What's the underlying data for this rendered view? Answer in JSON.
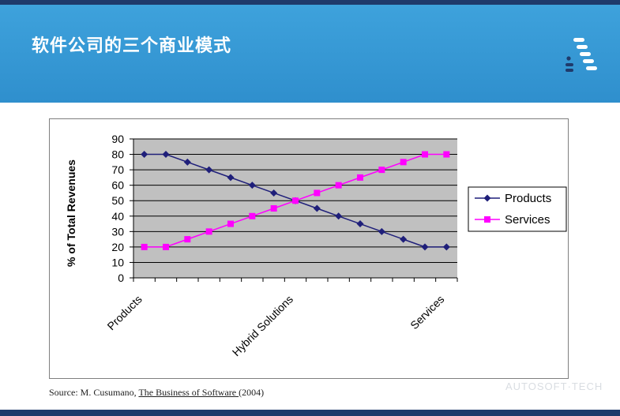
{
  "slide": {
    "title": "软件公司的三个商业模式"
  },
  "source": {
    "prefix": "Source: M. Cusumano, ",
    "book": "The Business of Software ",
    "year": "(2004)"
  },
  "watermark": {
    "text": "AUTOSOFT·TECH"
  },
  "chart_data": {
    "type": "line",
    "ylabel": "% of Total Revenues",
    "xlabel": "",
    "ylim": [
      0,
      90
    ],
    "yticks": [
      0,
      10,
      20,
      30,
      40,
      50,
      60,
      70,
      80,
      90
    ],
    "x_tick_labels": [
      {
        "index": 0,
        "label": "Products"
      },
      {
        "index": 7,
        "label": "Hybrid Solutions"
      },
      {
        "index": 14,
        "label": "Services"
      }
    ],
    "grid": true,
    "legend": "right",
    "series": [
      {
        "name": "Products",
        "color": "#1f1f7a",
        "marker": "diamond",
        "values": [
          80,
          80,
          75,
          70,
          65,
          60,
          55,
          50,
          45,
          40,
          35,
          30,
          25,
          20,
          20
        ]
      },
      {
        "name": "Services",
        "color": "#ff00ff",
        "marker": "square",
        "values": [
          20,
          20,
          25,
          30,
          35,
          40,
          45,
          50,
          55,
          60,
          65,
          70,
          75,
          80,
          80
        ]
      }
    ]
  }
}
